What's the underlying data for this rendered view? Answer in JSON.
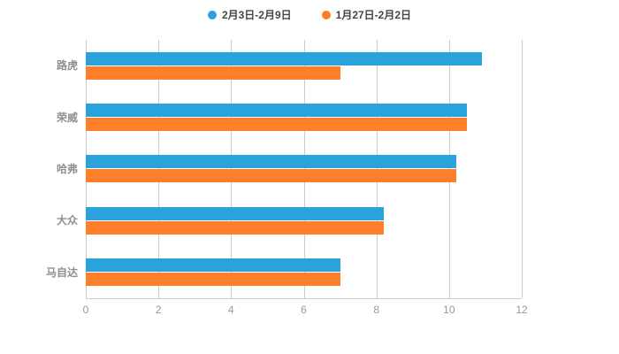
{
  "legend": [
    {
      "label": "2月3日-2月9日",
      "color": "#2AA3DC"
    },
    {
      "label": "1月27日-2月2日",
      "color": "#FF7E29"
    }
  ],
  "chart_data": {
    "type": "bar",
    "orientation": "horizontal",
    "title": "",
    "xlabel": "",
    "ylabel": "",
    "categories": [
      "路虎",
      "荣威",
      "哈弗",
      "大众",
      "马自达"
    ],
    "series": [
      {
        "name": "2月3日-2月9日",
        "color": "#2AA3DD",
        "values": [
          10.9,
          10.5,
          10.2,
          8.2,
          7.0
        ]
      },
      {
        "name": "1月27日-2月2日",
        "color": "#FF7E29",
        "values": [
          7.0,
          10.5,
          10.2,
          8.2,
          7.0
        ]
      }
    ],
    "xlim": [
      0,
      12
    ],
    "xticks": [
      0,
      2,
      4,
      6,
      8,
      10,
      12
    ],
    "grid": true,
    "legend_position": "top"
  }
}
